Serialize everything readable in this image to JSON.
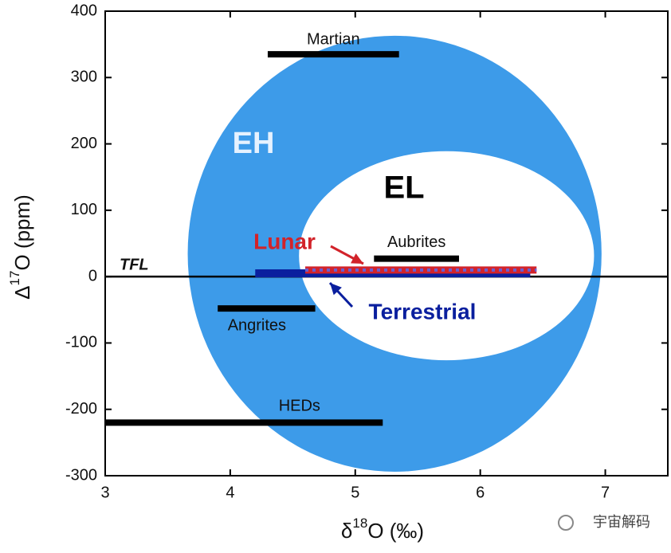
{
  "chart_data": {
    "type": "range",
    "xlabel": [
      "δ",
      "18",
      "O (‰)"
    ],
    "ylabel": [
      "Δ",
      "17",
      "O (ppm)"
    ],
    "xlim": [
      3,
      7.5
    ],
    "xticks": [
      3,
      4,
      5,
      6,
      7
    ],
    "ylim": [
      -300,
      400
    ],
    "yticks": [
      -300,
      -200,
      -100,
      0,
      100,
      200,
      300,
      400
    ],
    "reference_line": {
      "label": "TFL",
      "value": 0
    },
    "regions": [
      {
        "name": "EH",
        "x": [
          3.66,
          6.97
        ],
        "y": [
          -294,
          363
        ],
        "color": "#3d9be9"
      },
      {
        "name": "EL",
        "x": [
          4.55,
          6.91
        ],
        "y": [
          -126,
          189
        ],
        "color": "#ffffff"
      }
    ],
    "series": [
      {
        "name": "Martian",
        "x": [
          4.3,
          5.35
        ],
        "y": 335,
        "color": "#000000"
      },
      {
        "name": "Aubrites",
        "x": [
          5.15,
          5.83
        ],
        "y": 27,
        "color": "#000000"
      },
      {
        "name": "Angrites",
        "x": [
          3.9,
          4.68
        ],
        "y": -48,
        "color": "#000000"
      },
      {
        "name": "HEDs",
        "x": [
          3.0,
          5.22
        ],
        "y": -220,
        "color": "#000000"
      },
      {
        "name": "Terrestrial",
        "x": [
          4.2,
          6.4
        ],
        "y": 5,
        "color": "#0a1f9e"
      },
      {
        "name": "Lunar",
        "x": [
          4.6,
          6.45
        ],
        "y": 10,
        "color": "#d2232a"
      }
    ],
    "watermark": "宇宙解码"
  }
}
